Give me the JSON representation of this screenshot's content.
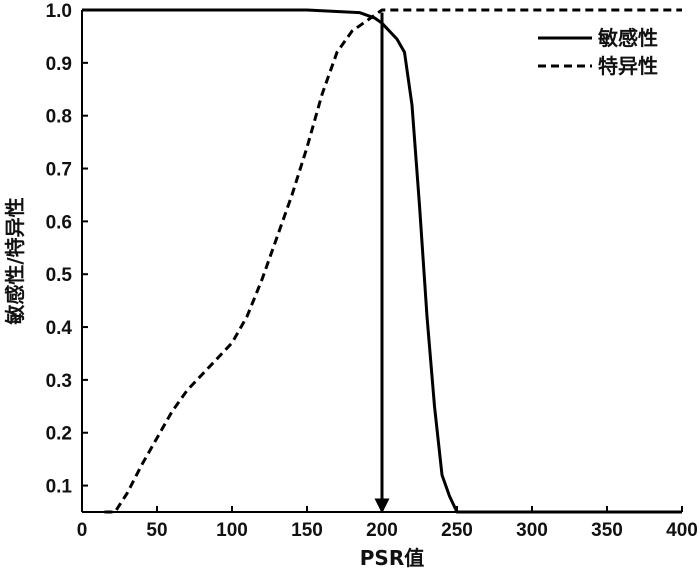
{
  "chart_data": {
    "type": "line",
    "xlabel": "PSR值",
    "ylabel": "敏感性/特异性",
    "xlim": [
      0,
      400
    ],
    "ylim": [
      0.05,
      1.0
    ],
    "x_ticks": [
      0,
      50,
      100,
      150,
      200,
      250,
      300,
      350,
      400
    ],
    "y_ticks": [
      0.1,
      0.2,
      0.3,
      0.4,
      0.5,
      0.6,
      0.7,
      0.8,
      0.9,
      1.0
    ],
    "x_tick_labels": [
      "0",
      "50",
      "100",
      "150",
      "200",
      "250",
      "300",
      "350",
      "400"
    ],
    "y_tick_labels": [
      "0.1",
      "0.2",
      "0.3",
      "0.4",
      "0.5",
      "0.6",
      "0.7",
      "0.8",
      "0.9",
      "1.0"
    ],
    "grid": false,
    "legend_position": "top-right",
    "series": [
      {
        "name": "敏感性",
        "style": "solid",
        "color": "#000000",
        "x": [
          0,
          150,
          185,
          195,
          200,
          210,
          215,
          220,
          225,
          230,
          235,
          240,
          245,
          250,
          255,
          400
        ],
        "y": [
          1.0,
          1.0,
          0.995,
          0.985,
          0.975,
          0.945,
          0.92,
          0.82,
          0.63,
          0.42,
          0.25,
          0.12,
          0.08,
          0.05,
          0.05,
          0.05
        ]
      },
      {
        "name": "特异性",
        "style": "dashed",
        "color": "#000000",
        "x": [
          15,
          22,
          30,
          40,
          50,
          60,
          70,
          80,
          90,
          100,
          110,
          120,
          130,
          140,
          150,
          160,
          170,
          180,
          190,
          195,
          200,
          210,
          250,
          300,
          350,
          400
        ],
        "y": [
          0.05,
          0.05,
          0.085,
          0.14,
          0.19,
          0.24,
          0.28,
          0.31,
          0.34,
          0.37,
          0.42,
          0.49,
          0.57,
          0.65,
          0.74,
          0.84,
          0.92,
          0.96,
          0.98,
          0.99,
          1.0,
          1.0,
          1.0,
          1.0,
          1.0,
          1.0
        ]
      }
    ],
    "annotations": [
      {
        "type": "arrow",
        "x": 200,
        "y_from": 0.995,
        "y_to": 0.05
      }
    ]
  }
}
